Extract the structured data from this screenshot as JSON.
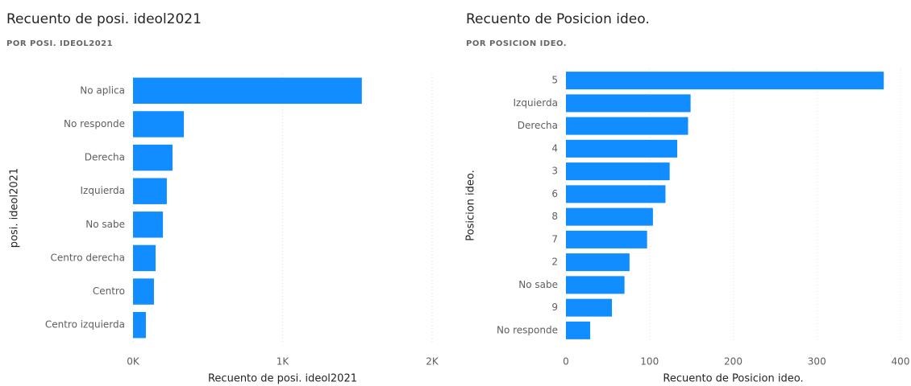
{
  "chart_data": [
    {
      "type": "barh",
      "title": "Recuento de posi. ideol2021",
      "subtitle": "POR POSI. IDEOL2021",
      "x_label": "Recuento de posi. ideol2021",
      "y_label": "posi. ideol2021",
      "categories": [
        "No aplica",
        "No responde",
        "Derecha",
        "Izquierda",
        "No sabe",
        "Centro derecha",
        "Centro",
        "Centro izquierda"
      ],
      "values": [
        1530,
        340,
        264,
        226,
        200,
        151,
        140,
        86
      ],
      "color": "#118dff",
      "xlim": [
        0,
        2000
      ],
      "xticks": [
        {
          "value": 0,
          "label": "0K"
        },
        {
          "value": 1000,
          "label": "1K"
        },
        {
          "value": 2000,
          "label": "2K"
        }
      ],
      "grid": true
    },
    {
      "type": "barh",
      "title": "Recuento de Posicion ideo.",
      "subtitle": "POR POSICION IDEO.",
      "x_label": "Recuento de Posicion ideo.",
      "y_label": "Posicion ideo.",
      "categories": [
        "5",
        "Izquierda",
        "Derecha",
        "4",
        "3",
        "6",
        "8",
        "7",
        "2",
        "No sabe",
        "9",
        "No responde"
      ],
      "values": [
        380,
        149,
        146,
        133,
        124,
        119,
        104,
        97,
        76,
        70,
        55,
        29
      ],
      "color": "#118dff",
      "xlim": [
        0,
        400
      ],
      "xticks": [
        0,
        100,
        200,
        300,
        400
      ],
      "grid": true
    }
  ]
}
